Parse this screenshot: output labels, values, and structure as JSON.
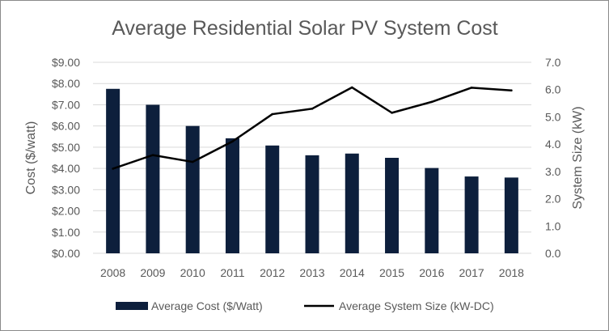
{
  "chart_data": {
    "type": "bar",
    "title": "Average Residential Solar PV System Cost",
    "categories": [
      "2008",
      "2009",
      "2010",
      "2011",
      "2012",
      "2013",
      "2014",
      "2015",
      "2016",
      "2017",
      "2018"
    ],
    "series": [
      {
        "name": "Average Cost ($/Watt)",
        "type": "bar",
        "axis": "left",
        "color": "#0d1f3c",
        "values": [
          7.75,
          7.0,
          6.0,
          5.42,
          5.08,
          4.62,
          4.7,
          4.5,
          4.02,
          3.62,
          3.57
        ]
      },
      {
        "name": "Average System Size (kW-DC)",
        "type": "line",
        "axis": "right",
        "color": "#000000",
        "values": [
          3.1,
          3.6,
          3.35,
          4.1,
          5.1,
          5.3,
          6.08,
          5.15,
          5.55,
          6.07,
          5.97
        ]
      }
    ],
    "ylabel": "Cost ($/watt)",
    "y2label": "System Size (kW)",
    "xlabel": "",
    "ylim": [
      0,
      9
    ],
    "y2lim": [
      0,
      7
    ],
    "yticks": [
      "$0.00",
      "$1.00",
      "$2.00",
      "$3.00",
      "$4.00",
      "$5.00",
      "$6.00",
      "$7.00",
      "$8.00",
      "$9.00"
    ],
    "y2ticks": [
      "0.0",
      "1.0",
      "2.0",
      "3.0",
      "4.0",
      "5.0",
      "6.0",
      "7.0"
    ],
    "grid": true,
    "legend_position": "bottom",
    "colors": {
      "grid": "#d9d9d9",
      "text": "#595959",
      "bar": "#0d1f3c",
      "line": "#000000"
    }
  }
}
